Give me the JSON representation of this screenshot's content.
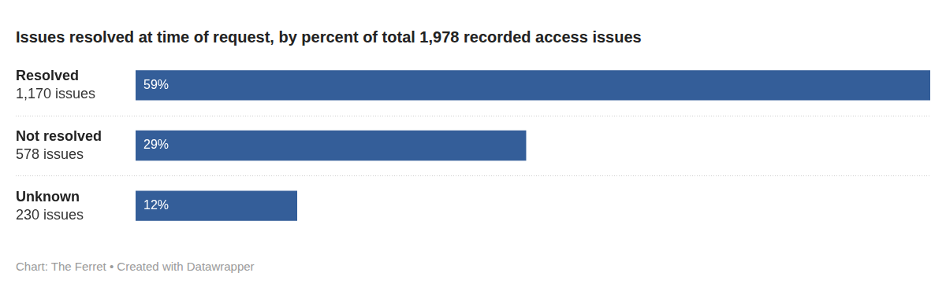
{
  "chart_data": {
    "type": "bar",
    "orientation": "horizontal",
    "title": "Issues resolved at time of request, by percent of total 1,978 recorded access issues",
    "source": "Chart: The Ferret • Created with Datawrapper",
    "categories": [
      "Resolved",
      "Not resolved",
      "Unknown"
    ],
    "category_sublabels": [
      "1,170 issues",
      "578 issues",
      "230 issues"
    ],
    "values": [
      59,
      29,
      12
    ],
    "value_labels": [
      "59%",
      "29%",
      "12%"
    ],
    "data_labels": true,
    "color": "#345e99",
    "xlim": [
      0,
      59
    ],
    "grid": false,
    "tick_labels": false
  }
}
